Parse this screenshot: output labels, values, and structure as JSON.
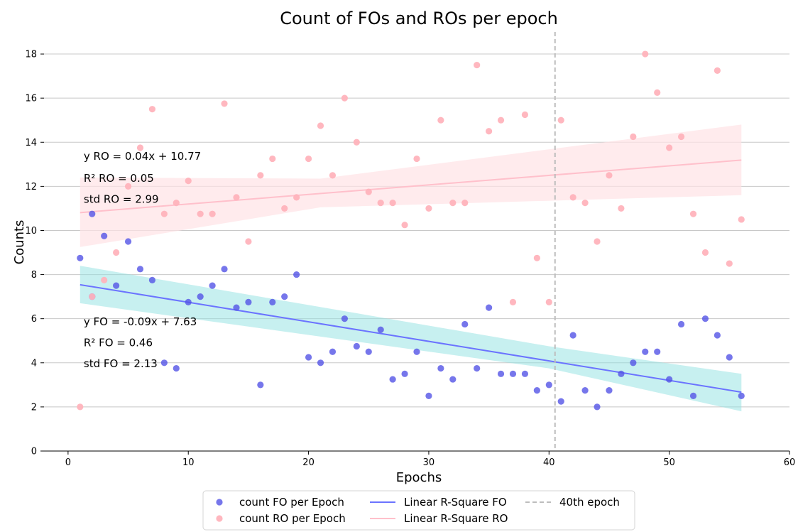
{
  "colors": {
    "fo_point": "#5454e6",
    "ro_point": "#ffb3bc",
    "fo_line": "#6b73ff",
    "ro_line": "#ffc0cb",
    "fo_band": "#8fe2e2",
    "ro_band": "#ffe3e6",
    "vline": "#bdbdbd",
    "grid": "#c8c8c8"
  },
  "chart_data": {
    "type": "scatter",
    "title": "Count of FOs and ROs per epoch",
    "xlabel": "Epochs",
    "ylabel": "Counts",
    "xlim": [
      -2,
      60
    ],
    "ylim": [
      0,
      19
    ],
    "x_ticks": [
      0,
      10,
      20,
      30,
      40,
      50,
      60
    ],
    "y_ticks": [
      0,
      2,
      4,
      6,
      8,
      10,
      12,
      14,
      16,
      18
    ],
    "grid": "horizontal",
    "legend_position": "bottom-center",
    "series": [
      {
        "name": "count FO per Epoch",
        "kind": "scatter",
        "points": [
          [
            1,
            8.75
          ],
          [
            2,
            10.75
          ],
          [
            2,
            7.0
          ],
          [
            3,
            9.75
          ],
          [
            4,
            7.5
          ],
          [
            5,
            9.5
          ],
          [
            6,
            8.25
          ],
          [
            7,
            7.75
          ],
          [
            8,
            4.0
          ],
          [
            9,
            3.75
          ],
          [
            10,
            6.75
          ],
          [
            11,
            7.0
          ],
          [
            12,
            7.5
          ],
          [
            13,
            8.25
          ],
          [
            14,
            6.5
          ],
          [
            15,
            6.75
          ],
          [
            16,
            3.0
          ],
          [
            17,
            6.75
          ],
          [
            18,
            7.0
          ],
          [
            19,
            8.0
          ],
          [
            20,
            4.25
          ],
          [
            21,
            4.0
          ],
          [
            22,
            4.5
          ],
          [
            23,
            6.0
          ],
          [
            24,
            4.75
          ],
          [
            25,
            4.5
          ],
          [
            26,
            5.5
          ],
          [
            27,
            3.25
          ],
          [
            28,
            3.5
          ],
          [
            29,
            4.5
          ],
          [
            30,
            2.5
          ],
          [
            31,
            3.75
          ],
          [
            32,
            3.25
          ],
          [
            33,
            5.75
          ],
          [
            34,
            3.75
          ],
          [
            35,
            6.5
          ],
          [
            36,
            3.5
          ],
          [
            37,
            3.5
          ],
          [
            38,
            3.5
          ],
          [
            39,
            2.75
          ],
          [
            40,
            3.0
          ],
          [
            41,
            2.25
          ],
          [
            42,
            5.25
          ],
          [
            43,
            2.75
          ],
          [
            44,
            2.0
          ],
          [
            45,
            2.75
          ],
          [
            46,
            3.5
          ],
          [
            47,
            4.0
          ],
          [
            48,
            4.5
          ],
          [
            49,
            4.5
          ],
          [
            50,
            3.25
          ],
          [
            51,
            5.75
          ],
          [
            52,
            2.5
          ],
          [
            53,
            6.0
          ],
          [
            54,
            5.25
          ],
          [
            55,
            4.25
          ],
          [
            56,
            2.5
          ]
        ]
      },
      {
        "name": "count RO per Epoch",
        "kind": "scatter",
        "points": [
          [
            1,
            2.0
          ],
          [
            2,
            7.0
          ],
          [
            3,
            7.75
          ],
          [
            4,
            9.0
          ],
          [
            5,
            12.0
          ],
          [
            6,
            13.75
          ],
          [
            7,
            15.5
          ],
          [
            8,
            10.75
          ],
          [
            9,
            11.25
          ],
          [
            10,
            12.25
          ],
          [
            11,
            10.75
          ],
          [
            12,
            10.75
          ],
          [
            13,
            15.75
          ],
          [
            14,
            11.5
          ],
          [
            15,
            9.5
          ],
          [
            16,
            12.5
          ],
          [
            17,
            13.25
          ],
          [
            18,
            11.0
          ],
          [
            19,
            11.5
          ],
          [
            20,
            13.25
          ],
          [
            21,
            14.75
          ],
          [
            22,
            12.5
          ],
          [
            23,
            16.0
          ],
          [
            24,
            14.0
          ],
          [
            25,
            11.75
          ],
          [
            26,
            11.25
          ],
          [
            27,
            11.25
          ],
          [
            28,
            10.25
          ],
          [
            29,
            13.25
          ],
          [
            30,
            11.0
          ],
          [
            31,
            15.0
          ],
          [
            32,
            11.25
          ],
          [
            33,
            11.25
          ],
          [
            34,
            17.5
          ],
          [
            35,
            14.5
          ],
          [
            36,
            15.0
          ],
          [
            37,
            6.75
          ],
          [
            38,
            15.25
          ],
          [
            39,
            8.75
          ],
          [
            40,
            6.75
          ],
          [
            41,
            15.0
          ],
          [
            42,
            11.5
          ],
          [
            43,
            11.25
          ],
          [
            44,
            9.5
          ],
          [
            45,
            12.5
          ],
          [
            46,
            11.0
          ],
          [
            47,
            14.25
          ],
          [
            48,
            18.0
          ],
          [
            49,
            16.25
          ],
          [
            50,
            13.75
          ],
          [
            51,
            14.25
          ],
          [
            52,
            10.75
          ],
          [
            53,
            9.0
          ],
          [
            54,
            17.25
          ],
          [
            55,
            8.5
          ],
          [
            56,
            10.5
          ]
        ]
      },
      {
        "name": "Linear R-Square FO",
        "kind": "line",
        "x": [
          1,
          56
        ],
        "y": [
          7.54,
          2.67
        ],
        "band_x": [
          1,
          40,
          56
        ],
        "band_lower": [
          6.7,
          3.75,
          1.8
        ],
        "band_upper": [
          8.4,
          4.75,
          3.5
        ]
      },
      {
        "name": "Linear R-Square RO",
        "kind": "line",
        "x": [
          1,
          56
        ],
        "y": [
          10.81,
          13.19
        ],
        "band_x": [
          1,
          21,
          56
        ],
        "band_lower": [
          9.25,
          11.05,
          11.6
        ],
        "band_upper": [
          12.4,
          12.35,
          14.8
        ]
      },
      {
        "name": "40th epoch",
        "kind": "vline",
        "x": 40.5
      }
    ],
    "annotations": [
      {
        "text": "y RO = 0.04x + 10.77",
        "x": 1.3,
        "y": 13.2
      },
      {
        "text": "R² RO = 0.05",
        "x": 1.3,
        "y": 12.2
      },
      {
        "text": "std RO = 2.99",
        "x": 1.3,
        "y": 11.25
      },
      {
        "text": "y FO = -0.09x + 7.63",
        "x": 1.3,
        "y": 5.7
      },
      {
        "text": "R² FO = 0.46",
        "x": 1.3,
        "y": 4.75
      },
      {
        "text": "std FO = 2.13",
        "x": 1.3,
        "y": 3.8
      }
    ]
  }
}
